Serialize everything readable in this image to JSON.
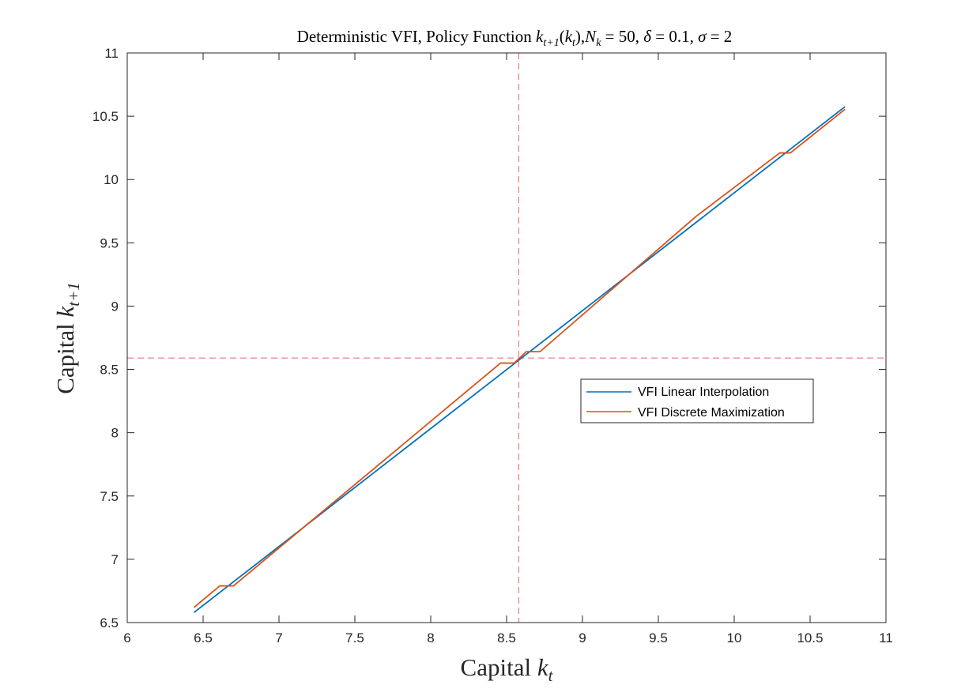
{
  "chart_data": {
    "type": "line",
    "title": {
      "prefix": "Deterministic VFI, Policy Function ",
      "k": "k",
      "k_sub": "t+1",
      "paren_open": "(",
      "kt": "k",
      "kt_sub": "t",
      "paren_close": ")",
      "comma1": ",",
      "N": "N",
      "N_sub": "k",
      "eq1": " = 50, ",
      "delta": "δ",
      "eq2": " = 0.1, ",
      "sigma": "σ",
      "eq3": " = 2"
    },
    "xlabel": {
      "text": "Capital ",
      "var": "k",
      "sub": "t"
    },
    "ylabel": {
      "text": "Capital ",
      "var": "k",
      "sub": "t+1"
    },
    "xlim": [
      6,
      11
    ],
    "ylim": [
      6.5,
      11
    ],
    "xticks": [
      "6",
      "6.5",
      "7",
      "7.5",
      "8",
      "8.5",
      "9",
      "9.5",
      "10",
      "10.5",
      "11"
    ],
    "xtick_values": [
      6,
      6.5,
      7,
      7.5,
      8,
      8.5,
      9,
      9.5,
      10,
      10.5,
      11
    ],
    "yticks": [
      "6.5",
      "7",
      "7.5",
      "8",
      "8.5",
      "9",
      "9.5",
      "10",
      "10.5",
      "11"
    ],
    "ytick_values": [
      6.5,
      7,
      7.5,
      8,
      8.5,
      9,
      9.5,
      10,
      10.5,
      11
    ],
    "grid": false,
    "legend_position": "center-right",
    "reference_lines": {
      "x": 8.58,
      "y": 8.59,
      "color": "#e0636e",
      "style": "dashed"
    },
    "series": [
      {
        "name": "VFI Linear Interpolation",
        "color": "#0072bd",
        "x": [
          6.44,
          10.73
        ],
        "y": [
          6.58,
          10.575
        ]
      },
      {
        "name": "VFI Discrete Maximization",
        "color": "#d95319",
        "x": [
          6.44,
          6.61,
          6.7,
          8.46,
          8.55,
          8.63,
          8.72,
          9.75,
          10.3,
          10.37,
          10.73
        ],
        "y": [
          6.62,
          6.79,
          6.79,
          8.55,
          8.55,
          8.64,
          8.64,
          9.71,
          10.21,
          10.21,
          10.555
        ]
      }
    ]
  }
}
